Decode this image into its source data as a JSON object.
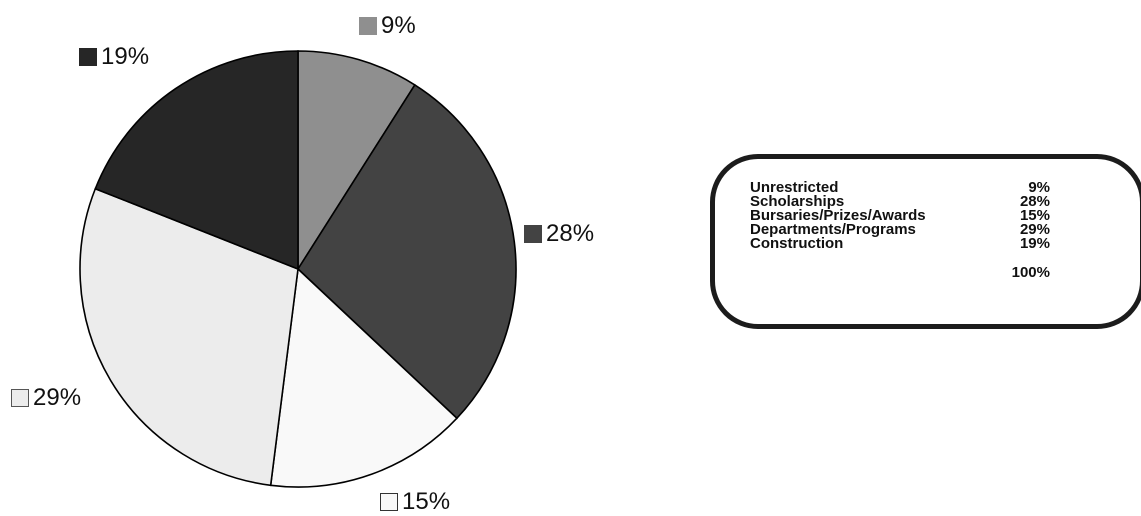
{
  "chart_data": {
    "type": "pie",
    "title": "",
    "slices": [
      {
        "category": "Unrestricted",
        "value": 9,
        "label": "9%",
        "color": "#8f8f8f",
        "swatch_border": "#8f8f8f"
      },
      {
        "category": "Scholarships",
        "value": 28,
        "label": "28%",
        "color": "#434343",
        "swatch_border": "#434343"
      },
      {
        "category": "Bursaries/Prizes/Awards",
        "value": 15,
        "label": "15%",
        "color": "#f9f9f9",
        "swatch_border": "#333333"
      },
      {
        "category": "Departments/Programs",
        "value": 29,
        "label": "29%",
        "color": "#ececec",
        "swatch_border": "#555555"
      },
      {
        "category": "Construction",
        "value": 19,
        "label": "19%",
        "color": "#262626",
        "swatch_border": "#262626"
      }
    ],
    "start": "12 o'clock",
    "direction": "clockwise",
    "legend": {
      "placement": "right",
      "rows": [
        {
          "name": "Unrestricted",
          "value": "9%"
        },
        {
          "name": "Scholarships",
          "value": "28%"
        },
        {
          "name": "Bursaries/Prizes/Awards",
          "value": "15%"
        },
        {
          "name": "Departments/Programs",
          "value": "29%"
        },
        {
          "name": "Construction",
          "value": "19%"
        }
      ],
      "total": "100%"
    }
  }
}
